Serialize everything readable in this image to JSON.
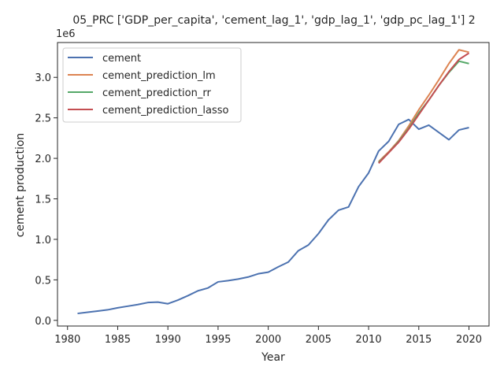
{
  "chart_data": {
    "type": "line",
    "title": "05_PRC ['GDP_per_capita', 'cement_lag_1', 'gdp_lag_1', 'gdp_pc_lag_1'] 2",
    "xlabel": "Year",
    "ylabel": "cement production",
    "y_offset_label": "1e6",
    "xlim": [
      1979,
      2022
    ],
    "ylim": [
      -0.07,
      3.43
    ],
    "x_ticks": [
      1980,
      1985,
      1990,
      1995,
      2000,
      2005,
      2010,
      2015,
      2020
    ],
    "x_tick_labels": [
      "1980",
      "1985",
      "1990",
      "1995",
      "2000",
      "2005",
      "2010",
      "2015",
      "2020"
    ],
    "y_ticks": [
      0.0,
      0.5,
      1.0,
      1.5,
      2.0,
      2.5,
      3.0
    ],
    "y_tick_labels": [
      "0.0",
      "0.5",
      "1.0",
      "1.5",
      "2.0",
      "2.5",
      "3.0"
    ],
    "grid": false,
    "legend_position": "top-left",
    "series": [
      {
        "name": "cement",
        "color": "#4c72b0",
        "x": [
          1981,
          1982,
          1983,
          1984,
          1985,
          1986,
          1987,
          1988,
          1989,
          1990,
          1991,
          1992,
          1993,
          1994,
          1995,
          1996,
          1997,
          1998,
          1999,
          2000,
          2001,
          2002,
          2003,
          2004,
          2005,
          2006,
          2007,
          2008,
          2009,
          2010,
          2011,
          2012,
          2013,
          2014,
          2015,
          2016,
          2017,
          2018,
          2019,
          2020
        ],
        "y": [
          0.085,
          0.1,
          0.115,
          0.13,
          0.155,
          0.175,
          0.195,
          0.22,
          0.225,
          0.205,
          0.25,
          0.305,
          0.365,
          0.4,
          0.475,
          0.49,
          0.51,
          0.535,
          0.575,
          0.595,
          0.66,
          0.72,
          0.86,
          0.93,
          1.07,
          1.24,
          1.36,
          1.4,
          1.65,
          1.82,
          2.09,
          2.21,
          2.42,
          2.48,
          2.36,
          2.41,
          2.32,
          2.23,
          2.35,
          2.38
        ]
      },
      {
        "name": "cement_prediction_lm",
        "color": "#dd8452",
        "x": [
          2011,
          2012,
          2013,
          2014,
          2015,
          2016,
          2017,
          2018,
          2019,
          2020
        ],
        "y": [
          1.96,
          2.08,
          2.22,
          2.4,
          2.6,
          2.78,
          2.97,
          3.17,
          3.34,
          3.31
        ]
      },
      {
        "name": "cement_prediction_rr",
        "color": "#55a868",
        "x": [
          2011,
          2012,
          2013,
          2014,
          2015,
          2016,
          2017,
          2018,
          2019,
          2020
        ],
        "y": [
          1.95,
          2.07,
          2.21,
          2.37,
          2.56,
          2.72,
          2.9,
          3.06,
          3.2,
          3.17
        ]
      },
      {
        "name": "cement_prediction_lasso",
        "color": "#c44e52",
        "x": [
          2011,
          2012,
          2013,
          2014,
          2015,
          2016,
          2017,
          2018,
          2019,
          2020
        ],
        "y": [
          1.94,
          2.07,
          2.2,
          2.36,
          2.54,
          2.72,
          2.9,
          3.07,
          3.22,
          3.3
        ]
      }
    ]
  }
}
